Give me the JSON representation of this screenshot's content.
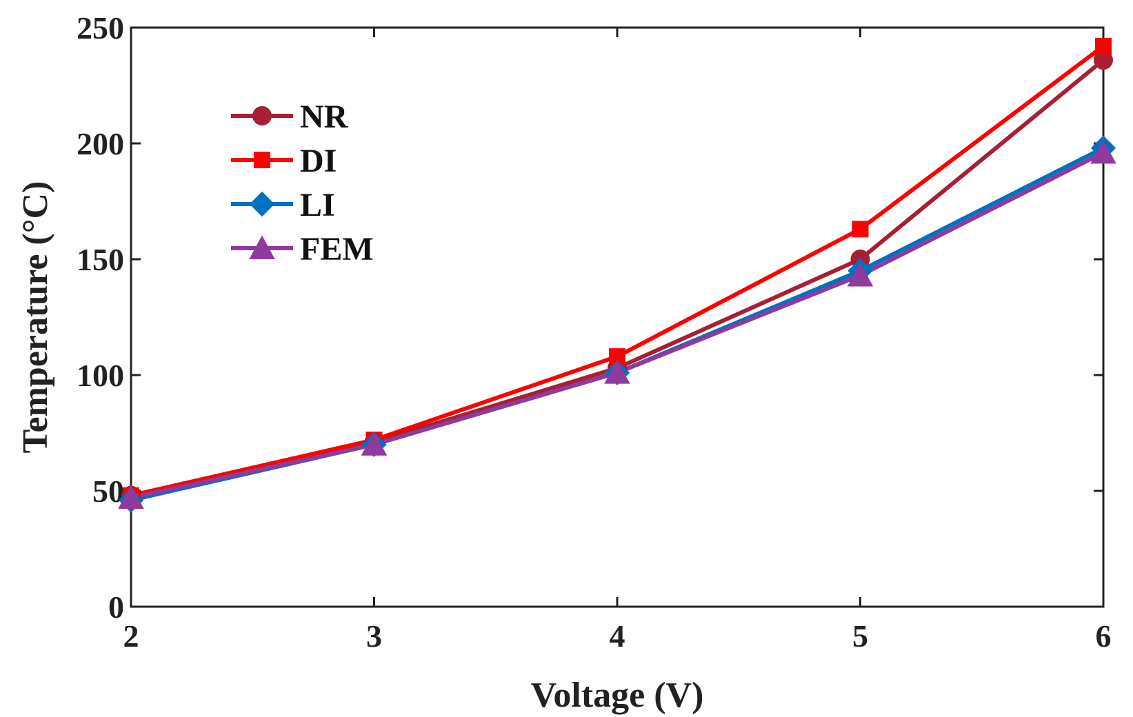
{
  "chart_data": {
    "type": "line",
    "title": "",
    "xlabel": "Voltage (V)",
    "ylabel": "Temperature (°C)",
    "xlim": [
      2,
      6
    ],
    "ylim": [
      0,
      250
    ],
    "xticks": [
      2,
      3,
      4,
      5,
      6
    ],
    "yticks": [
      0,
      50,
      100,
      150,
      200,
      250
    ],
    "grid": false,
    "legend_position": "top-left",
    "x": [
      2,
      3,
      4,
      5,
      6
    ],
    "series": [
      {
        "name": "NR",
        "color": "#a81e32",
        "marker": "circle",
        "values": [
          48,
          71,
          103,
          150,
          236
        ]
      },
      {
        "name": "DI",
        "color": "#ff0000",
        "marker": "square",
        "values": [
          48,
          72,
          108,
          163,
          242
        ]
      },
      {
        "name": "LI",
        "color": "#0070c0",
        "marker": "diamond",
        "values": [
          46,
          70,
          101,
          145,
          198
        ]
      },
      {
        "name": "FEM",
        "color": "#8e3a9e",
        "marker": "triangle",
        "values": [
          47,
          70,
          101,
          143,
          196
        ]
      }
    ]
  }
}
